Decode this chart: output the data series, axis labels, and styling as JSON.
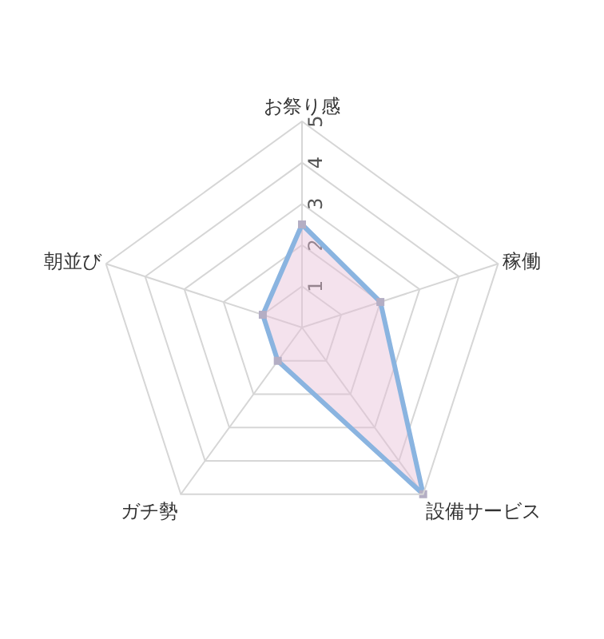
{
  "chart_data": {
    "type": "radar",
    "categories": [
      "お祭り感",
      "稼働",
      "設備サービス",
      "ガチ勢",
      "朝並び"
    ],
    "series": [
      {
        "color": "#8ab4e0",
        "values": [
          2.5,
          2,
          5,
          1,
          1
        ]
      }
    ],
    "ylim": [
      0,
      5
    ],
    "yticks": [
      1,
      2,
      3,
      4,
      5
    ],
    "marker": "square",
    "grid": true,
    "legend": false
  }
}
